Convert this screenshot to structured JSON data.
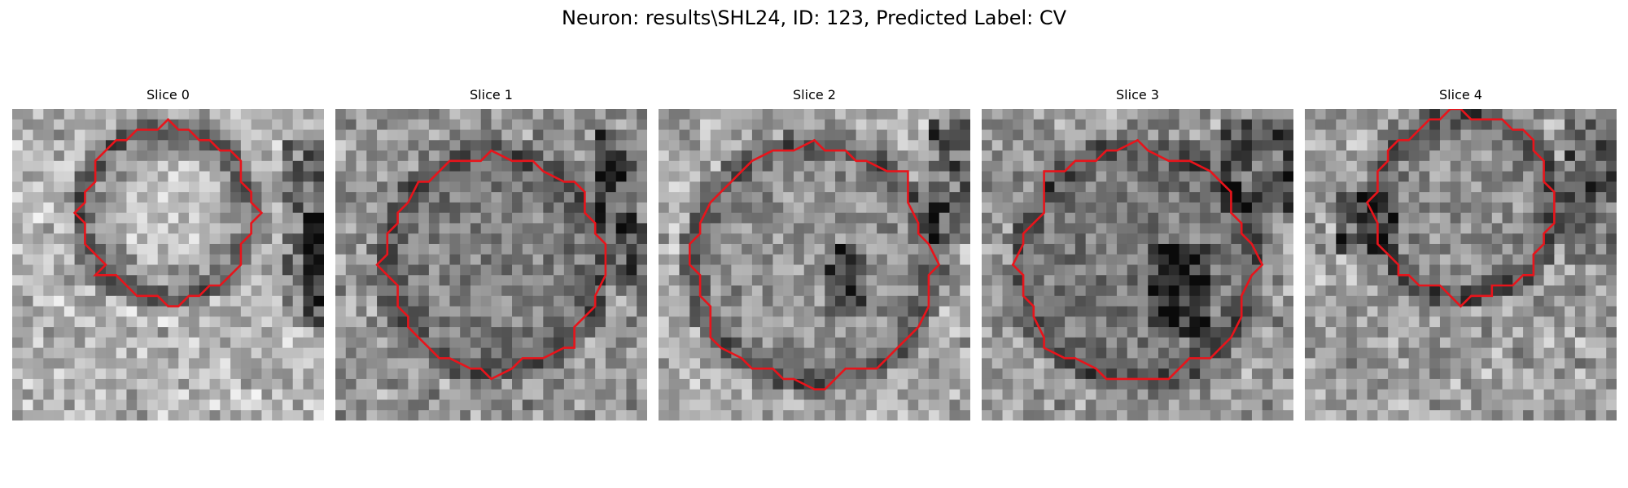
{
  "figure": {
    "title": "Neuron: results\\SHL24, ID: 123, Predicted Label: CV"
  },
  "slices": [
    {
      "label": "Slice 0"
    },
    {
      "label": "Slice 1"
    },
    {
      "label": "Slice 2"
    },
    {
      "label": "Slice 3"
    },
    {
      "label": "Slice 4"
    }
  ],
  "colors": {
    "contour": "#e8141b",
    "background": "#ffffff"
  }
}
